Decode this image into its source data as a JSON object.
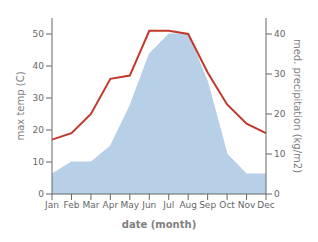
{
  "chart_data": {
    "type": "line",
    "xlabel": "date (month)",
    "ylabel": "max temp (C)",
    "y2label": "med. precipitation (kg/m2)",
    "categories": [
      "Jan",
      "Feb",
      "Mar",
      "Apr",
      "May",
      "Jun",
      "Jul",
      "Aug",
      "Sep",
      "Oct",
      "Nov",
      "Dec"
    ],
    "series": [
      {
        "type": "area",
        "axis": "y2",
        "color": "#b8cfe8",
        "values": [
          5,
          8,
          8,
          12,
          22,
          35,
          40,
          40,
          28,
          10,
          5,
          5
        ]
      },
      {
        "type": "line",
        "color": "#c0392b",
        "values": [
          17,
          19,
          25,
          36,
          37,
          51,
          51,
          50,
          38,
          28,
          22,
          19
        ]
      }
    ],
    "ylim": [
      0,
      55
    ],
    "yticks": [
      0,
      10,
      20,
      30,
      40,
      50
    ],
    "y2lim": [
      0,
      44
    ],
    "y2ticks": [
      0,
      10,
      20,
      30,
      40
    ],
    "grid": false
  }
}
